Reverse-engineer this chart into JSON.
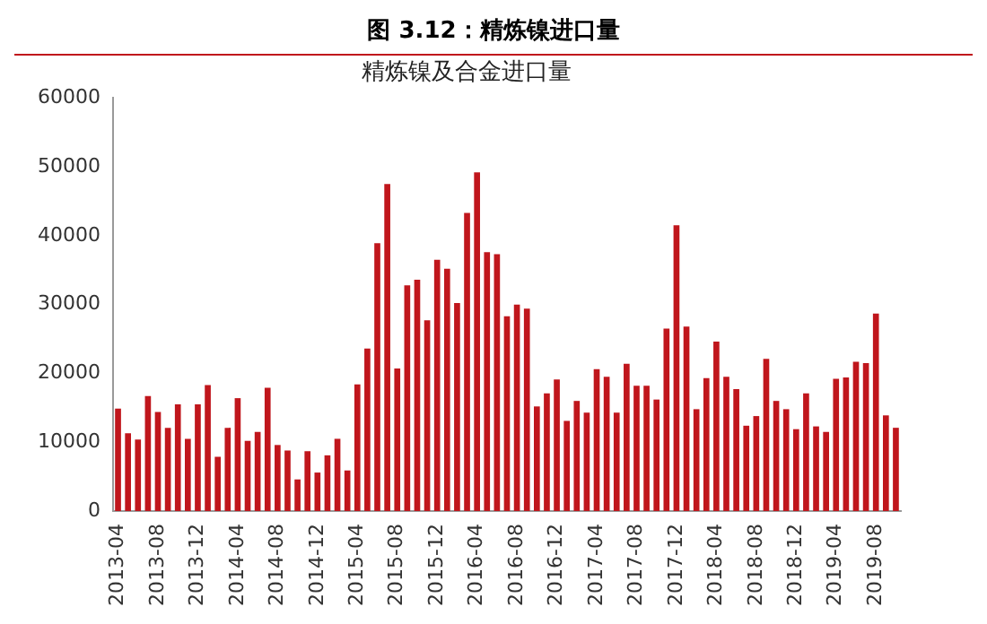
{
  "chart_data": {
    "type": "bar",
    "title": "图 3.12：精炼镍进口量",
    "subtitle": "精炼镍及合金进口量",
    "categories": [
      "2013-04",
      null,
      null,
      null,
      "2013-08",
      null,
      null,
      null,
      "2013-12",
      null,
      null,
      null,
      "2014-04",
      null,
      null,
      null,
      "2014-08",
      null,
      null,
      null,
      "2014-12",
      null,
      null,
      null,
      "2015-04",
      null,
      null,
      null,
      "2015-08",
      null,
      null,
      null,
      "2015-12",
      null,
      null,
      null,
      "2016-04",
      null,
      null,
      null,
      "2016-08",
      null,
      null,
      null,
      "2016-12",
      null,
      null,
      null,
      "2017-04",
      null,
      null,
      null,
      "2017-08",
      null,
      null,
      null,
      "2017-12",
      null,
      null,
      null,
      "2018-04",
      null,
      null,
      null,
      "2018-08",
      null,
      null,
      null,
      "2018-12",
      null,
      null,
      null,
      "2019-04",
      null,
      null,
      null,
      "2019-08",
      null,
      null
    ],
    "values": [
      14900,
      11300,
      10400,
      16700,
      14400,
      12100,
      15500,
      10500,
      15500,
      18300,
      7900,
      12100,
      16400,
      10200,
      11500,
      17900,
      9600,
      8800,
      4600,
      8700,
      5600,
      8100,
      10500,
      5900,
      18400,
      23600,
      38900,
      47500,
      20700,
      32800,
      33600,
      27700,
      36500,
      35200,
      30200,
      43300,
      49200,
      37600,
      37300,
      28300,
      30000,
      29400,
      15200,
      17100,
      19100,
      13100,
      16000,
      14300,
      20600,
      19500,
      14300,
      21400,
      18200,
      18200,
      16200,
      26500,
      41500,
      26800,
      14800,
      19300,
      24600,
      19500,
      17700,
      12400,
      13800,
      22100,
      16000,
      14800,
      11900,
      17100,
      12300,
      11500,
      19200,
      19400,
      21700,
      21500,
      28700,
      13900,
      12100
    ],
    "color": "#c0161c",
    "ylim": [
      0,
      60000
    ],
    "yticks": [
      0,
      10000,
      20000,
      30000,
      40000,
      50000,
      60000
    ],
    "grid": false,
    "legend": false
  }
}
